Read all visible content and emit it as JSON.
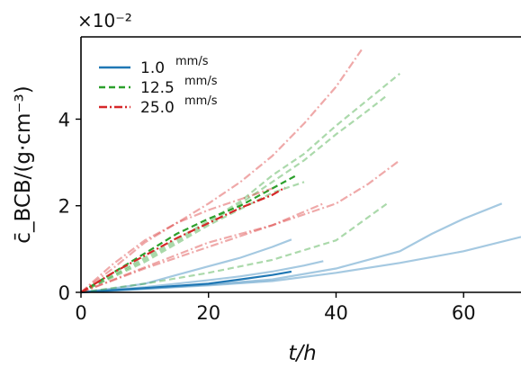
{
  "chart_data": {
    "type": "line",
    "xlabel": "t/h",
    "ylabel": "c̄_BCB/(g·cm⁻³)",
    "y_multiplier": "×10⁻²",
    "xlim": [
      0,
      69
    ],
    "ylim": [
      0,
      0.059
    ],
    "x_ticks": [
      0,
      20,
      40,
      60
    ],
    "x_tick_labels": [
      "0",
      "20",
      "40",
      "60"
    ],
    "y_ticks": [
      0,
      0.02,
      0.04
    ],
    "y_tick_labels": [
      "0",
      "2",
      "4"
    ],
    "grid": false,
    "legend_position": "top-left",
    "legend": [
      {
        "value": "1.0",
        "unit": "mm/s",
        "style": "solid",
        "color": "#1f77b4"
      },
      {
        "value": "12.5",
        "unit": "mm/s",
        "style": "dashed",
        "color": "#2ca02c"
      },
      {
        "value": "25.0",
        "unit": "mm/s",
        "style": "dashdot",
        "color": "#d62728"
      }
    ],
    "series": [
      {
        "group": "1.0",
        "style": "solid",
        "color": "#1f77b4",
        "opacity": 1.0,
        "x": [
          0,
          5,
          10,
          15,
          20,
          25,
          30,
          33
        ],
        "y": [
          0,
          0.0005,
          0.001,
          0.0015,
          0.002,
          0.003,
          0.004,
          0.0048
        ]
      },
      {
        "group": "1.0",
        "style": "solid",
        "color": "#1f77b4",
        "opacity": 0.4,
        "x": [
          0,
          5,
          10,
          15,
          20,
          25,
          30,
          33
        ],
        "y": [
          0,
          0.0009,
          0.002,
          0.004,
          0.006,
          0.008,
          0.0105,
          0.0122
        ]
      },
      {
        "group": "1.0",
        "style": "solid",
        "color": "#1f77b4",
        "opacity": 0.4,
        "x": [
          0,
          10,
          20,
          25,
          30,
          35,
          38
        ],
        "y": [
          0,
          0.0012,
          0.0028,
          0.0037,
          0.0048,
          0.0062,
          0.0072
        ]
      },
      {
        "group": "1.0",
        "style": "solid",
        "color": "#1f77b4",
        "opacity": 0.4,
        "x": [
          0,
          10,
          20,
          30,
          40,
          50,
          55,
          60,
          66
        ],
        "y": [
          0,
          0.0008,
          0.0018,
          0.003,
          0.0055,
          0.0095,
          0.0135,
          0.017,
          0.0205
        ]
      },
      {
        "group": "1.0",
        "style": "solid",
        "color": "#1f77b4",
        "opacity": 0.4,
        "x": [
          0,
          10,
          20,
          30,
          40,
          50,
          60,
          69
        ],
        "y": [
          0,
          0.0008,
          0.0016,
          0.0026,
          0.0045,
          0.0068,
          0.0095,
          0.0128
        ]
      },
      {
        "group": "12.5",
        "style": "dashed",
        "color": "#2ca02c",
        "opacity": 1.0,
        "x": [
          0,
          5,
          10,
          15,
          20,
          25,
          30,
          34
        ],
        "y": [
          0,
          0.0045,
          0.009,
          0.0135,
          0.017,
          0.02,
          0.024,
          0.0272
        ]
      },
      {
        "group": "12.5",
        "style": "dashed",
        "color": "#2ca02c",
        "opacity": 0.4,
        "x": [
          0,
          10,
          20,
          30,
          40,
          48
        ],
        "y": [
          0,
          0.002,
          0.0045,
          0.0075,
          0.012,
          0.0205
        ]
      },
      {
        "group": "12.5",
        "style": "dashed",
        "color": "#2ca02c",
        "opacity": 0.4,
        "x": [
          0,
          10,
          20,
          30,
          35
        ],
        "y": [
          0,
          0.007,
          0.0155,
          0.023,
          0.0255
        ]
      },
      {
        "group": "12.5",
        "style": "dashed",
        "color": "#2ca02c",
        "opacity": 0.4,
        "x": [
          0,
          10,
          20,
          25,
          30,
          35,
          40,
          45,
          50
        ],
        "y": [
          0,
          0.008,
          0.0165,
          0.021,
          0.027,
          0.032,
          0.0385,
          0.0445,
          0.0505
        ]
      },
      {
        "group": "12.5",
        "style": "dashed",
        "color": "#2ca02c",
        "opacity": 0.4,
        "x": [
          0,
          10,
          20,
          25,
          30,
          35,
          40,
          45,
          48
        ],
        "y": [
          0,
          0.0075,
          0.016,
          0.0205,
          0.0255,
          0.0305,
          0.0365,
          0.042,
          0.0455
        ]
      },
      {
        "group": "25.0",
        "style": "dashdot",
        "color": "#d62728",
        "opacity": 1.0,
        "x": [
          0,
          5,
          10,
          15,
          20,
          25,
          30,
          32
        ],
        "y": [
          0,
          0.0045,
          0.0085,
          0.0125,
          0.016,
          0.0195,
          0.0225,
          0.0242
        ]
      },
      {
        "group": "25.0",
        "style": "dashdot",
        "color": "#d62728",
        "opacity": 0.4,
        "x": [
          0,
          5,
          10,
          15,
          20,
          25,
          30,
          35,
          40,
          44
        ],
        "y": [
          0,
          0.0055,
          0.0115,
          0.016,
          0.0205,
          0.0255,
          0.0315,
          0.039,
          0.0475,
          0.056
        ]
      },
      {
        "group": "25.0",
        "style": "dashdot",
        "color": "#d62728",
        "opacity": 0.4,
        "x": [
          0,
          5,
          10,
          15,
          20,
          25,
          30
        ],
        "y": [
          0,
          0.0065,
          0.012,
          0.016,
          0.019,
          0.0215,
          0.024
        ]
      },
      {
        "group": "25.0",
        "style": "dashdot",
        "color": "#d62728",
        "opacity": 0.4,
        "x": [
          0,
          10,
          20,
          30,
          38
        ],
        "y": [
          0,
          0.0058,
          0.0115,
          0.0155,
          0.0205
        ]
      },
      {
        "group": "25.0",
        "style": "dashdot",
        "color": "#d62728",
        "opacity": 0.4,
        "x": [
          0,
          10,
          20,
          30,
          40,
          45,
          50
        ],
        "y": [
          0,
          0.0055,
          0.0105,
          0.0155,
          0.0205,
          0.025,
          0.0305
        ]
      }
    ]
  }
}
